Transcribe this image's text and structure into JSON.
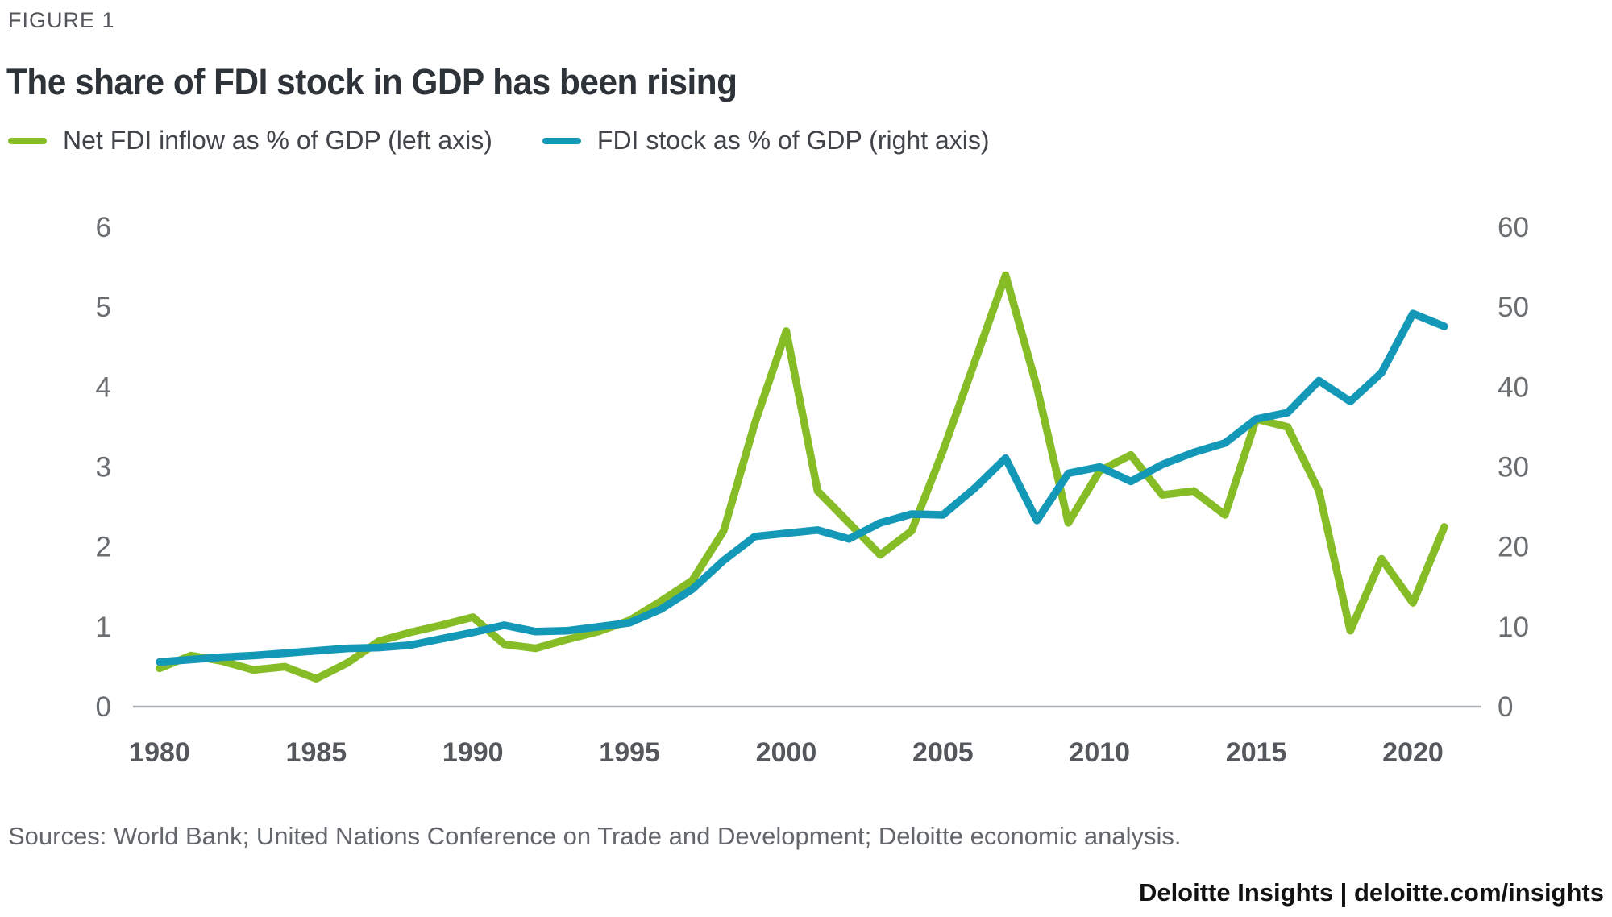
{
  "figure_label": "FIGURE 1",
  "title": "The share of FDI stock in GDP has been rising",
  "legend": [
    {
      "label": "Net FDI inflow as % of GDP (left axis)",
      "color": "#86BC25"
    },
    {
      "label": "FDI stock as % of GDP (right axis)",
      "color": "#1399B7"
    }
  ],
  "source_note": "Sources: World Bank; United Nations Conference on Trade and Development; Deloitte economic analysis.",
  "footer": "Deloitte Insights | deloitte.com/insights",
  "colors": {
    "green_series": "#86BC25",
    "teal_series": "#1399B7",
    "axis_line": "#ACAFB1",
    "tick_text": "#6A6E71",
    "year_text": "#54575B"
  },
  "chart_data": {
    "type": "line",
    "title": "The share of FDI stock in GDP has been rising",
    "x": [
      1980,
      1981,
      1982,
      1983,
      1984,
      1985,
      1986,
      1987,
      1988,
      1989,
      1990,
      1991,
      1992,
      1993,
      1994,
      1995,
      1996,
      1997,
      1998,
      1999,
      2000,
      2001,
      2002,
      2003,
      2004,
      2005,
      2006,
      2007,
      2008,
      2009,
      2010,
      2011,
      2012,
      2013,
      2014,
      2015,
      2016,
      2017,
      2018,
      2019,
      2020,
      2021
    ],
    "series": [
      {
        "name": "Net FDI inflow as % of GDP (left axis)",
        "axis": "left",
        "color": "#86BC25",
        "values": [
          0.48,
          0.64,
          0.57,
          0.46,
          0.5,
          0.35,
          0.55,
          0.82,
          0.93,
          1.02,
          1.12,
          0.78,
          0.73,
          0.84,
          0.94,
          1.08,
          1.32,
          1.58,
          2.2,
          3.55,
          4.7,
          2.7,
          2.3,
          1.9,
          2.2,
          3.2,
          4.3,
          5.4,
          4.0,
          2.3,
          2.95,
          3.15,
          2.65,
          2.7,
          2.4,
          3.6,
          3.5,
          2.7,
          0.95,
          1.85,
          1.3,
          2.25
        ]
      },
      {
        "name": "FDI stock as % of GDP (right axis)",
        "axis": "right",
        "color": "#1399B7",
        "values": [
          5.6,
          5.9,
          6.2,
          6.4,
          6.7,
          7.0,
          7.3,
          7.4,
          7.7,
          8.5,
          9.3,
          10.2,
          9.4,
          9.5,
          10.0,
          10.5,
          12.2,
          14.7,
          18.3,
          21.3,
          21.7,
          22.1,
          21.0,
          23.0,
          24.1,
          24.0,
          27.3,
          31.1,
          23.3,
          29.2,
          30.0,
          28.2,
          30.3,
          31.8,
          33.0,
          36.0,
          36.8,
          40.8,
          38.2,
          41.8,
          49.2,
          47.6
        ]
      }
    ],
    "left_axis": {
      "label": "",
      "range": [
        0,
        6
      ],
      "ticks": [
        0,
        1,
        2,
        3,
        4,
        5,
        6
      ]
    },
    "right_axis": {
      "label": "",
      "range": [
        0,
        60
      ],
      "ticks": [
        0,
        10,
        20,
        30,
        40,
        50,
        60
      ]
    },
    "x_ticks": [
      1980,
      1985,
      1990,
      1995,
      2000,
      2005,
      2010,
      2015,
      2020
    ],
    "grid": false,
    "legend_position": "top-left"
  }
}
